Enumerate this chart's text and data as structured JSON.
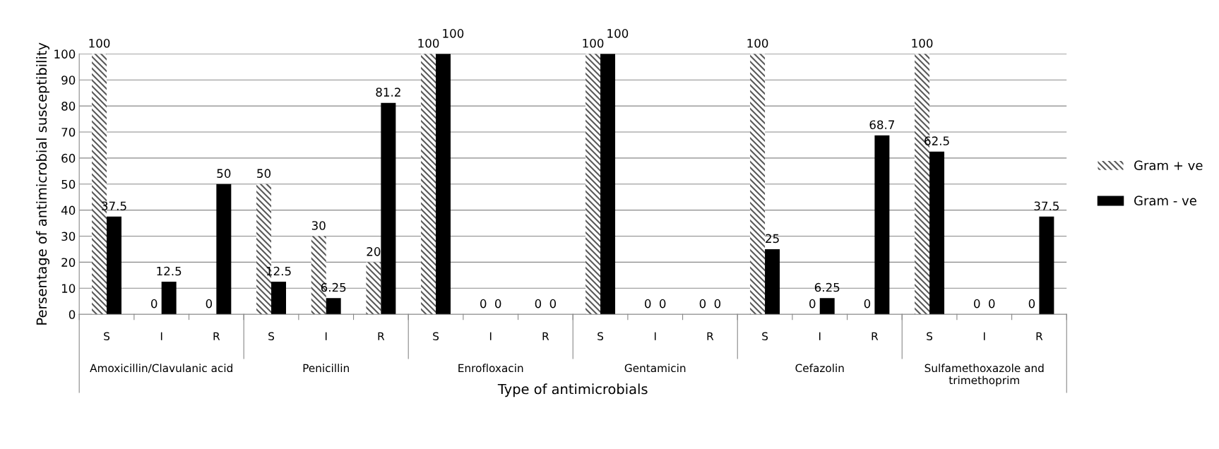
{
  "chart_data": {
    "type": "bar",
    "xlabel": "Type of antimicrobials",
    "ylabel": "Persentage of antimicrobial susceptibility",
    "categories": [
      "S",
      "I",
      "R",
      "S",
      "I",
      "R",
      "S",
      "I",
      "R",
      "S",
      "I",
      "R",
      "S",
      "I",
      "R",
      "S",
      "I",
      "R"
    ],
    "annotations": [
      "Amoxicillin/Clavulanic acid",
      "Penicillin",
      "Enrofloxacin",
      "Gentamicin",
      "Cefazolin",
      "Sulfamethoxazole and\ntrimethoprim"
    ],
    "series": [
      {
        "name": "Gram + ve",
        "color": "#595959",
        "values": [
          100,
          0,
          0,
          50,
          30,
          20,
          100,
          0,
          0,
          100,
          0,
          0,
          100,
          0,
          0,
          100,
          0,
          0
        ]
      },
      {
        "name": "Gram - ve",
        "color": "#000000",
        "values": [
          37.5,
          12.5,
          50,
          12.5,
          6.25,
          81.2,
          100,
          0,
          0,
          100,
          0,
          0,
          25,
          6.25,
          68.7,
          62.5,
          0,
          37.5
        ]
      }
    ],
    "ylim": [
      0,
      100
    ],
    "yticks": [
      0,
      10,
      20,
      30,
      40,
      50,
      60,
      70,
      80,
      90,
      100
    ],
    "grid": "y",
    "legend": "right",
    "data_labels": true
  }
}
